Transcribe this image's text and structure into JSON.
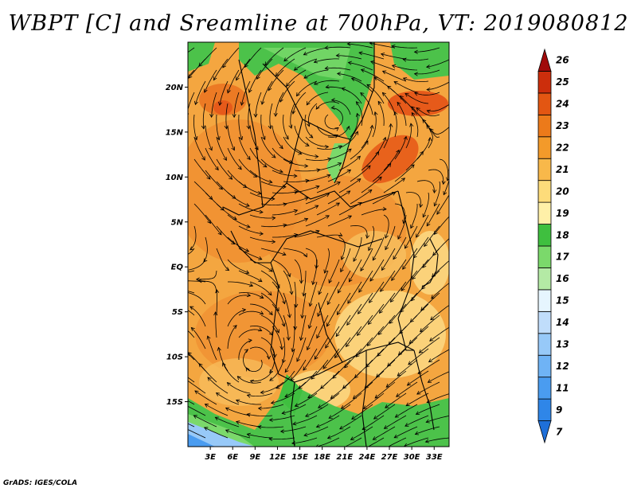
{
  "title": "WBPT [C] and Sreamline at 700hPa, VT: 2019080812",
  "credit": "GrADS: IGES/COLA",
  "map": {
    "lat_labels": [
      "20N",
      "15N",
      "10N",
      "5N",
      "EQ",
      "5S",
      "10S",
      "15S"
    ],
    "lat_values": [
      20,
      15,
      10,
      5,
      0,
      -5,
      -10,
      -15
    ],
    "lon_labels": [
      "3E",
      "6E",
      "9E",
      "12E",
      "15E",
      "18E",
      "21E",
      "24E",
      "27E",
      "30E",
      "33E"
    ],
    "lon_values": [
      3,
      6,
      9,
      12,
      15,
      18,
      21,
      24,
      27,
      30,
      33
    ],
    "lon_range": [
      0,
      35
    ],
    "lat_range": [
      -20,
      25
    ]
  },
  "colorbar": {
    "labels": [
      "7",
      "9",
      "11",
      "12",
      "13",
      "14",
      "15",
      "16",
      "17",
      "18",
      "19",
      "20",
      "21",
      "22",
      "23",
      "24",
      "25",
      "26"
    ],
    "colors": [
      "#1e6fd9",
      "#2f86e8",
      "#4a9cf0",
      "#6fb3f5",
      "#97c9f8",
      "#c0ddfb",
      "#e6f5fe",
      "#b4eaa5",
      "#7bd96b",
      "#3fbf3f",
      "#fff0a8",
      "#fddc7a",
      "#f8b84a",
      "#f39a2a",
      "#ec7a1a",
      "#e35612",
      "#cc2e0c",
      "#a00a0a"
    ]
  }
}
